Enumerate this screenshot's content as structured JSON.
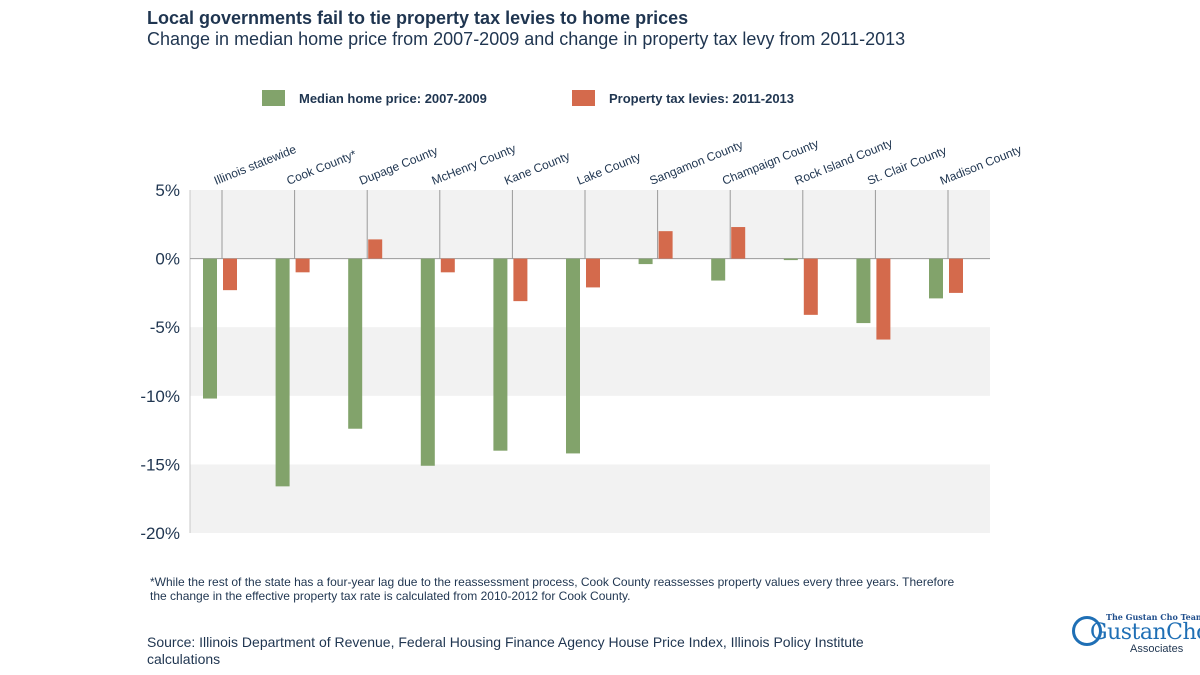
{
  "chart_data": {
    "type": "bar",
    "title": "Local governments fail to tie property tax levies to home prices",
    "subtitle": "Change in median home price from 2007-2009 and change in property tax levy from 2011-2013",
    "categories": [
      "Illinois statewide",
      "Cook County*",
      "Dupage County",
      "McHenry County",
      "Kane County",
      "Lake County",
      "Sangamon County",
      "Champaign County",
      "Rock Island County",
      "St. Clair County",
      "Madison County"
    ],
    "series": [
      {
        "name": "Median home price: 2007-2009",
        "color": "#82a36b",
        "values": [
          -10.2,
          -16.6,
          -12.4,
          -15.1,
          -14.0,
          -14.2,
          -0.4,
          -1.6,
          -0.1,
          -4.7,
          -2.9
        ]
      },
      {
        "name": "Property tax levies: 2011-2013",
        "color": "#d46a4c",
        "values": [
          -2.3,
          -1.0,
          1.4,
          -1.0,
          -3.1,
          -2.1,
          2.0,
          2.3,
          -4.1,
          -5.9,
          -2.5
        ]
      }
    ],
    "ylim": [
      -20,
      5
    ],
    "yticks": [
      5,
      0,
      -5,
      -10,
      -15,
      -20
    ],
    "ytick_labels": [
      "5%",
      "0%",
      "-5%",
      "-10%",
      "-15%",
      "-20%"
    ],
    "xlabel": "",
    "ylabel": "",
    "legend_position": "top",
    "grid": "alternating horizontal bands"
  },
  "footnote": "*While the rest of the state has a four-year lag due to the reassessment process, Cook County reassesses property values every three years. Therefore the change in the effective property tax rate is calculated from 2010-2012 for Cook County.",
  "source": "Source: Illinois Department of Revenue, Federal Housing Finance Agency House Price Index, Illinois Policy Institute calculations",
  "logo": {
    "tagline": "The Gustan Cho Team",
    "name": "GustanCho",
    "suffix": "Associates"
  }
}
